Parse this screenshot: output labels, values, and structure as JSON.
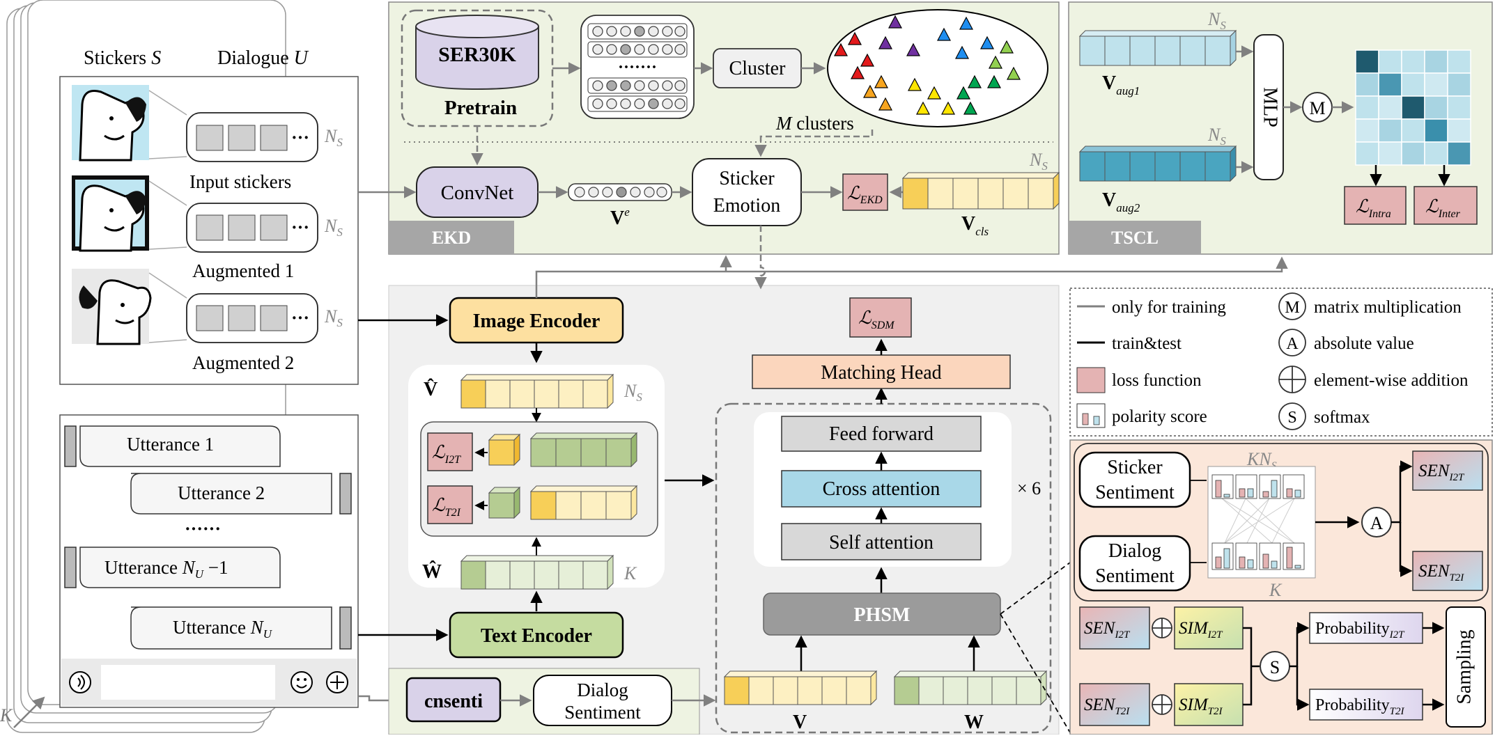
{
  "left": {
    "stickers_label": "Stickers",
    "stickers_sym": "S",
    "dialogue_label": "Dialogue",
    "dialogue_sym": "U",
    "ns": "N",
    "ns_sub": "S",
    "input_stickers": "Input stickers",
    "aug1": "Augmented 1",
    "aug2": "Augmented 2",
    "ellipsis_dots": "···",
    "utt1": "Utterance 1",
    "utt2": "Utterance 2",
    "utt_dots": "······",
    "utt_n1_pre": "Utterance ",
    "utt_n1_sym": "N",
    "utt_n1_sub": "U",
    "utt_n1_post": " −1",
    "uttn_pre": "Utterance ",
    "uttn_sym": "N",
    "uttn_sub": "U",
    "k": "K"
  },
  "ekd": {
    "tag": "EKD",
    "ser30k": "SER30K",
    "pretrain": "Pretrain",
    "cluster": "Cluster",
    "dots": "·······",
    "m_sym": "M",
    "m_clusters": " clusters",
    "convnet": "ConvNet",
    "ve": "V",
    "ve_sup": "e",
    "sticker_emotion_1": "Sticker",
    "sticker_emotion_2": "Emotion",
    "l": "ℒ",
    "l_ekd_sub": "EKD",
    "vcls": "V",
    "vcls_sub": "cls",
    "ns": "N",
    "ns_sub": "S"
  },
  "tscl": {
    "tag": "TSCL",
    "v": "V",
    "vaug1_sub": "aug1",
    "vaug2_sub": "aug2",
    "mlp": "MLP",
    "m": "M",
    "l": "ℒ",
    "intra_sub": "Intra",
    "inter_sub": "Inter",
    "ns": "N",
    "ns_sub": "S"
  },
  "center": {
    "image_encoder": "Image Encoder",
    "text_encoder": "Text Encoder",
    "vhat": "V̂",
    "what": "Ŵ",
    "l": "ℒ",
    "l_i2t_sub": "I2T",
    "l_t2i_sub": "T2I",
    "k": "K",
    "ns": "N",
    "ns_sub": "S",
    "l_sdm_sub": "SDM",
    "matching_head": "Matching Head",
    "feed_forward": "Feed forward",
    "cross_attention": "Cross attention",
    "self_attention": "Self attention",
    "times6": "× 6",
    "phsm": "PHSM",
    "v": "V",
    "w": "W",
    "cnsenti": "cnsenti",
    "dialog_sentiment_1": "Dialog",
    "dialog_sentiment_2": "Sentiment"
  },
  "legend": {
    "only_training": "only for training",
    "train_test": "train&test",
    "loss": "loss function",
    "polarity": "polarity score",
    "m_sym": "M",
    "matrix": "matrix multiplication",
    "a_sym": "A",
    "absolute": "absolute value",
    "elementwise": "element-wise addition",
    "s_sym": "S",
    "softmax": "softmax"
  },
  "phsm_detail": {
    "sticker_sentiment_1": "Sticker",
    "sticker_sentiment_2": "Sentiment",
    "dialog_sentiment_1": "Dialog",
    "dialog_sentiment_2": "Sentiment",
    "kns_k": "KN",
    "kns_sub": "S",
    "k": "K",
    "a": "A",
    "s": "S",
    "sen": "SEN",
    "sim": "SIM",
    "i2t": "I2T",
    "t2i": "T2I",
    "probability": "Probability",
    "sampling": "Sampling"
  },
  "colors": {
    "green_panel": "#eef3e2",
    "gray_panel": "#f0f0f0",
    "orange_panel": "#fbe7da",
    "yellow": "#fde8a0",
    "yellow_dark": "#f7cf58",
    "light_yellow": "#fdf4d4",
    "light_green": "#e6efd8",
    "green": "#b5cc92",
    "teal": "#4aa5c0",
    "light_teal": "#bfe2ec",
    "pink": "#e4b3b3",
    "lavender": "#d9d2e9",
    "cross_attn": "#a9d8e8",
    "gray_box": "#d8d8d8",
    "dark_gray": "#9b9b9b",
    "match_head": "#fbd6bd"
  }
}
